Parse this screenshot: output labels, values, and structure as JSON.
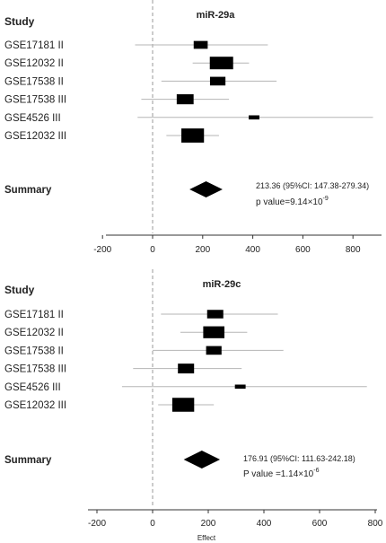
{
  "chart_data": [
    {
      "type": "forest",
      "title": "miR-29a",
      "study_header": "Study",
      "summary_label": "Summary",
      "xlim": [
        -200,
        900
      ],
      "ticks": [
        -200,
        0,
        200,
        400,
        600,
        800
      ],
      "studies": [
        {
          "label": "GSE17181 II",
          "estimate": 192,
          "ci": [
            -70,
            460
          ],
          "weight": 0.35
        },
        {
          "label": "GSE12032 II",
          "estimate": 275,
          "ci": [
            160,
            385
          ],
          "weight": 1.0
        },
        {
          "label": "GSE17538 II",
          "estimate": 260,
          "ci": [
            35,
            495
          ],
          "weight": 0.45
        },
        {
          "label": "GSE17538 III",
          "estimate": 130,
          "ci": [
            -45,
            305
          ],
          "weight": 0.55
        },
        {
          "label": "GSE4526 III",
          "estimate": 405,
          "ci": [
            -60,
            880
          ],
          "weight": 0.12
        },
        {
          "label": "GSE12032 III",
          "estimate": 160,
          "ci": [
            55,
            265
          ],
          "weight": 0.95
        }
      ],
      "summary": {
        "estimate": 213.36,
        "ci": [
          147.38,
          279.34
        ]
      },
      "summary_text": "213.36 (95%CI: 147.38-279.34)",
      "p_value_prefix": "p value=9.14",
      "p_value_times": "×",
      "p_value_base": "10",
      "p_value_exp": "-9",
      "xlabel": ""
    },
    {
      "type": "forest",
      "title": "miR-29c",
      "study_header": "Study",
      "summary_label": "Summary",
      "xlim": [
        -200,
        800
      ],
      "ticks": [
        -200,
        0,
        200,
        400,
        600,
        800
      ],
      "studies": [
        {
          "label": "GSE17181 II",
          "estimate": 225,
          "ci": [
            30,
            450
          ],
          "weight": 0.5
        },
        {
          "label": "GSE12032 II",
          "estimate": 220,
          "ci": [
            100,
            340
          ],
          "weight": 0.85
        },
        {
          "label": "GSE17538 II",
          "estimate": 220,
          "ci": [
            0,
            470
          ],
          "weight": 0.45
        },
        {
          "label": "GSE17538 III",
          "estimate": 120,
          "ci": [
            -70,
            320
          ],
          "weight": 0.5
        },
        {
          "label": "GSE4526 III",
          "estimate": 315,
          "ci": [
            -110,
            770
          ],
          "weight": 0.12
        },
        {
          "label": "GSE12032 III",
          "estimate": 110,
          "ci": [
            20,
            220
          ],
          "weight": 0.9
        }
      ],
      "summary": {
        "estimate": 176.91,
        "ci": [
          111.63,
          242.18
        ]
      },
      "summary_text": "176.91 (95%CI: 111.63-242.18)",
      "p_value_prefix": "P value =1.14",
      "p_value_times": "×",
      "p_value_base": "10",
      "p_value_exp": "-6",
      "xlabel": "Effect"
    }
  ]
}
